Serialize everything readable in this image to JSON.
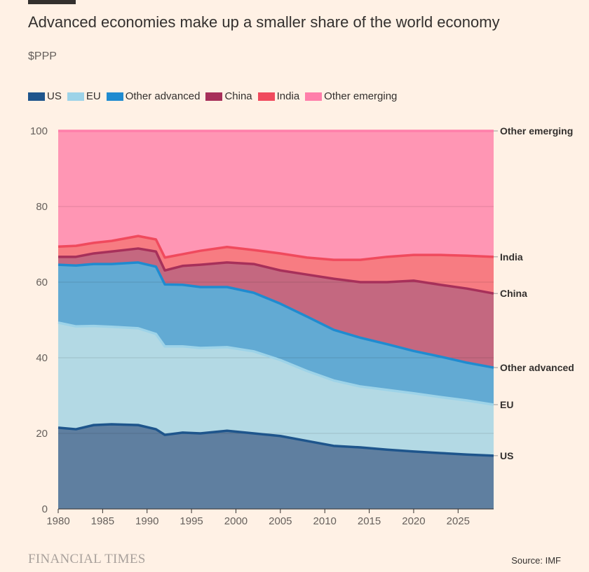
{
  "title": "Advanced economies make up a smaller share of the world economy",
  "subtitle": "$PPP",
  "source": "Source: IMF",
  "brand": "FINANCIAL TIMES",
  "chart_data": {
    "type": "area",
    "stacked": true,
    "title": "Advanced economies make up a smaller share of the world economy",
    "ylabel": "$PPP",
    "xlim": [
      1980,
      2029
    ],
    "ylim": [
      0,
      100
    ],
    "grid": true,
    "legend": "top-left",
    "x_ticks": [
      "1980",
      "1985",
      "1990",
      "1995",
      "2000",
      "2005",
      "2010",
      "2015",
      "2020",
      "2025"
    ],
    "y_ticks": [
      "0",
      "20",
      "40",
      "60",
      "80",
      "100"
    ],
    "x": [
      1980,
      1982,
      1984,
      1986,
      1989,
      1991,
      1992,
      1994,
      1996,
      1999,
      2002,
      2005,
      2008,
      2011,
      2014,
      2017,
      2020,
      2023,
      2026,
      2029
    ],
    "series": [
      {
        "name": "US",
        "fill": "#5f7fa0",
        "line": "#1e558c",
        "values": [
          21.5,
          21.1,
          22.2,
          22.4,
          22.2,
          21.1,
          19.6,
          20.2,
          20.0,
          20.7,
          20.0,
          19.3,
          18.0,
          16.7,
          16.3,
          15.7,
          15.2,
          14.8,
          14.4,
          14.1
        ]
      },
      {
        "name": "EU",
        "fill": "#b3d9e4",
        "line": "#9dd3e8",
        "values": [
          27.8,
          27.2,
          26.2,
          25.8,
          25.6,
          25.2,
          23.4,
          22.8,
          22.6,
          22.1,
          21.7,
          20.1,
          18.5,
          17.3,
          16.1,
          15.8,
          15.4,
          14.8,
          14.3,
          13.5
        ]
      },
      {
        "name": "Other advanced",
        "fill": "#62aad3",
        "line": "#1f8bd0",
        "values": [
          15.3,
          16.1,
          16.4,
          16.6,
          17.4,
          17.8,
          16.4,
          16.3,
          16.1,
          15.9,
          15.5,
          14.9,
          14.4,
          13.4,
          12.9,
          12.1,
          11.2,
          10.7,
          10.0,
          9.8
        ]
      },
      {
        "name": "China",
        "fill": "#c46880",
        "line": "#a7305a",
        "values": [
          2.1,
          2.3,
          2.8,
          3.3,
          3.7,
          4.0,
          3.7,
          5.0,
          5.9,
          6.5,
          7.6,
          8.8,
          11.1,
          13.5,
          14.7,
          16.4,
          18.6,
          19.0,
          19.6,
          19.6
        ]
      },
      {
        "name": "India",
        "fill": "#f77c82",
        "line": "#f04a5d",
        "values": [
          2.7,
          2.9,
          2.8,
          2.8,
          3.3,
          3.2,
          3.4,
          3.1,
          3.7,
          4.1,
          3.7,
          4.5,
          4.5,
          5.0,
          5.9,
          6.7,
          6.8,
          7.9,
          8.7,
          9.7
        ]
      },
      {
        "name": "Other emerging",
        "fill": "#ff96b4",
        "line": "#ff7faa",
        "values": [
          30.6,
          30.4,
          29.6,
          29.1,
          27.8,
          28.7,
          33.5,
          32.6,
          31.7,
          30.7,
          31.5,
          32.4,
          33.5,
          34.1,
          34.1,
          33.3,
          32.8,
          32.8,
          33.0,
          33.3
        ]
      }
    ]
  }
}
